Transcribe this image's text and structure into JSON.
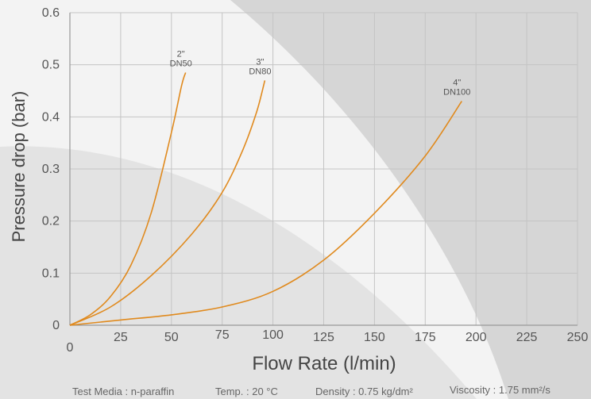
{
  "chart_data": {
    "type": "line",
    "xlabel": "Flow Rate (l/min)",
    "ylabel": "Pressure drop (bar)",
    "xlim": [
      0,
      250
    ],
    "ylim": [
      0,
      0.6
    ],
    "x_ticks": [
      "0",
      "25",
      "50",
      "75",
      "100",
      "125",
      "150",
      "175",
      "200",
      "225",
      "250"
    ],
    "y_ticks": [
      "0",
      "0.1",
      "0.2",
      "0.3",
      "0.4",
      "0.5",
      "0.6"
    ],
    "grid": true,
    "series_color": "#e08a1e",
    "series": [
      {
        "label_lines": [
          "2\"",
          "DN50"
        ],
        "x": [
          0,
          10,
          20,
          30,
          40,
          50,
          55,
          57
        ],
        "y": [
          0,
          0.02,
          0.055,
          0.115,
          0.215,
          0.37,
          0.46,
          0.485
        ]
      },
      {
        "label_lines": [
          "3\"",
          "DN80"
        ],
        "x": [
          0,
          20,
          40,
          60,
          75,
          85,
          92,
          96
        ],
        "y": [
          0,
          0.035,
          0.095,
          0.175,
          0.255,
          0.335,
          0.41,
          0.47
        ]
      },
      {
        "label_lines": [
          "4\"",
          "DN100"
        ],
        "x": [
          0,
          25,
          50,
          75,
          100,
          125,
          150,
          175,
          193
        ],
        "y": [
          0,
          0.01,
          0.02,
          0.035,
          0.065,
          0.125,
          0.215,
          0.325,
          0.43
        ]
      }
    ]
  },
  "footer": {
    "test_media": "Test Media : n-paraffin",
    "temp": "Temp. : 20 °C",
    "density": "Density : 0.75 kg/dm²",
    "viscosity": "Viscosity : 1.75 mm²/s"
  }
}
